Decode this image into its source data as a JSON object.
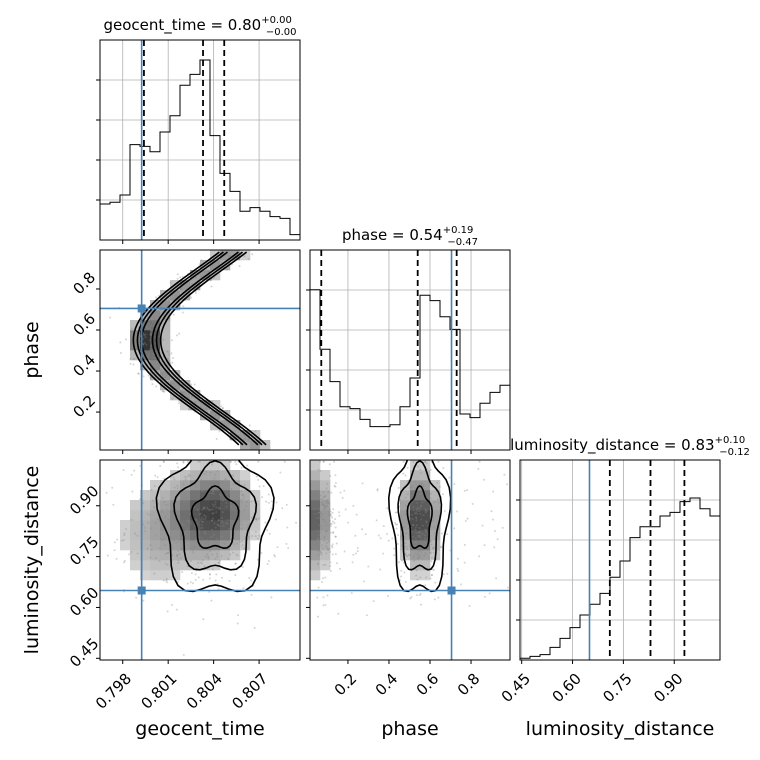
{
  "chart_data": {
    "type": "corner",
    "parameters": [
      "geocent_time",
      "phase",
      "luminosity_distance"
    ],
    "axis_labels": {
      "x": [
        "geocent_time",
        "phase",
        "luminosity_distance"
      ],
      "y": [
        "phase",
        "luminosity_distance"
      ]
    },
    "ranges": {
      "geocent_time": [
        0.7965,
        0.8097
      ],
      "phase": [
        0.015,
        0.99
      ],
      "luminosity_distance": [
        0.445,
        1.035
      ]
    },
    "ticks": {
      "geocent_time": {
        "values": [
          0.798,
          0.801,
          0.804,
          0.807
        ],
        "labels": [
          "0.798",
          "0.801",
          "0.804",
          "0.807"
        ]
      },
      "phase": {
        "values": [
          0.2,
          0.4,
          0.6,
          0.8
        ],
        "labels": [
          "0.2",
          "0.4",
          "0.6",
          "0.8"
        ]
      },
      "luminosity_distance": {
        "values": [
          0.45,
          0.6,
          0.75,
          0.9
        ],
        "labels": [
          "0.45",
          "0.60",
          "0.75",
          "0.90"
        ]
      }
    },
    "truths": {
      "geocent_time": 0.79925,
      "phase": 0.705,
      "luminosity_distance": 0.65
    },
    "titles": [
      {
        "param": "geocent_time",
        "text": "geocent_time = 0.80",
        "plus": "+0.00",
        "minus": "−0.00"
      },
      {
        "param": "phase",
        "text": "phase = 0.54",
        "plus": "+0.19",
        "minus": "−0.47"
      },
      {
        "param": "luminosity_distance",
        "text": "luminosity_distance = 0.83",
        "plus": "+0.10",
        "minus": "−0.12"
      }
    ],
    "histograms": {
      "geocent_time": {
        "quantiles": [
          0.7994,
          0.8033,
          0.8047
        ],
        "counts": [
          0.2,
          0.21,
          0.25,
          0.53,
          0.52,
          0.49,
          0.6,
          0.69,
          0.86,
          0.92,
          1.0,
          0.58,
          0.37,
          0.27,
          0.16,
          0.18,
          0.16,
          0.13,
          0.12,
          0.03
        ]
      },
      "phase": {
        "quantiles": [
          0.07,
          0.54,
          0.73
        ],
        "counts": [
          0.89,
          0.56,
          0.38,
          0.24,
          0.23,
          0.17,
          0.13,
          0.13,
          0.14,
          0.24,
          0.4,
          0.86,
          0.83,
          0.74,
          0.67,
          0.2,
          0.18,
          0.26,
          0.32,
          0.36
        ]
      },
      "luminosity_distance": {
        "quantiles": [
          0.71,
          0.83,
          0.93
        ],
        "counts": [
          0.01,
          0.02,
          0.03,
          0.07,
          0.12,
          0.18,
          0.25,
          0.31,
          0.37,
          0.46,
          0.55,
          0.68,
          0.74,
          0.74,
          0.8,
          0.82,
          0.88,
          0.9,
          0.84,
          0.8
        ]
      }
    },
    "grid": true,
    "colors": {
      "truth": "#4682b4",
      "contour": "#000000",
      "hist": "#000000",
      "grid": "#b0b0b0"
    }
  }
}
